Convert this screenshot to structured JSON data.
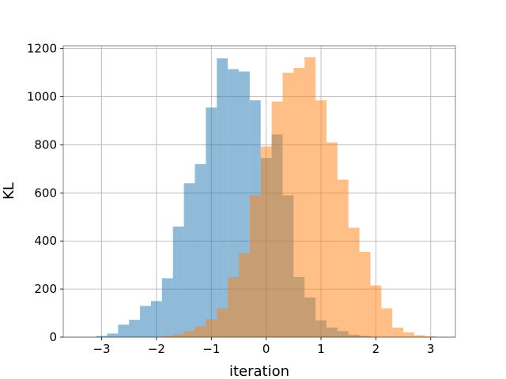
{
  "chart_data": {
    "type": "bar",
    "title": "",
    "xlabel": "iteration",
    "ylabel": "KL",
    "xlim": [
      -3.7,
      3.45
    ],
    "ylim": [
      0,
      1212
    ],
    "xticks": [
      -3,
      -2,
      -1,
      0,
      1,
      2,
      3
    ],
    "xtick_labels": [
      "−3",
      "−2",
      "−1",
      "0",
      "1",
      "2",
      "3"
    ],
    "yticks": [
      0,
      200,
      400,
      600,
      800,
      1000,
      1200
    ],
    "ytick_labels": [
      "0",
      "200",
      "400",
      "600",
      "800",
      "1000",
      "1200"
    ],
    "grid": true,
    "legend": null,
    "bin_width": 0.2,
    "series": [
      {
        "color": "#1f77b4",
        "alpha": 0.5,
        "bin_edges": [
          -3.1,
          -2.9,
          -2.7,
          -2.5,
          -2.3,
          -2.1,
          -1.9,
          -1.7,
          -1.5,
          -1.3,
          -1.1,
          -0.9,
          -0.7,
          -0.5,
          -0.3,
          -0.1,
          0.1,
          0.3,
          0.5,
          0.7,
          0.9,
          1.1,
          1.3,
          1.5,
          1.7,
          1.9
        ],
        "counts": [
          5,
          15,
          52,
          72,
          130,
          150,
          245,
          460,
          640,
          720,
          955,
          1160,
          1115,
          1105,
          985,
          745,
          843,
          590,
          250,
          165,
          70,
          40,
          25,
          10,
          5
        ]
      },
      {
        "color": "#ff7f0e",
        "alpha": 0.5,
        "bin_edges": [
          -1.9,
          -1.7,
          -1.5,
          -1.3,
          -1.1,
          -0.9,
          -0.7,
          -0.5,
          -0.3,
          -0.1,
          0.1,
          0.3,
          0.5,
          0.7,
          0.9,
          1.1,
          1.3,
          1.5,
          1.7,
          1.9,
          2.1,
          2.3,
          2.5,
          2.7,
          2.9,
          3.1
        ],
        "counts": [
          5,
          12,
          25,
          45,
          75,
          120,
          250,
          350,
          590,
          793,
          980,
          1100,
          1120,
          1165,
          985,
          810,
          655,
          455,
          355,
          215,
          120,
          40,
          20,
          8,
          3
        ]
      }
    ]
  }
}
